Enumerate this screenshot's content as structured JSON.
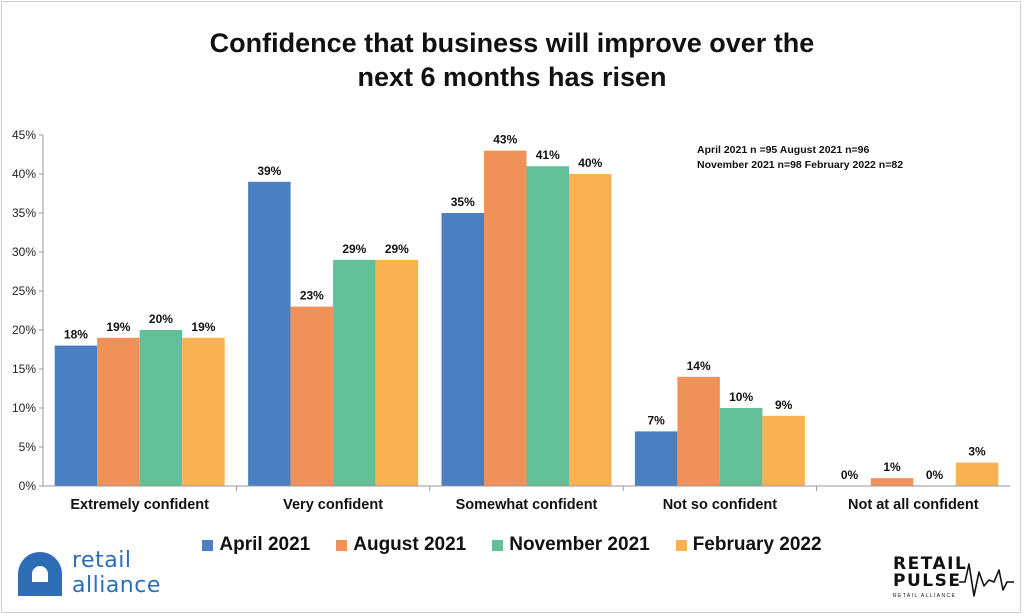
{
  "chart_data": {
    "type": "bar",
    "title_lines": [
      "Confidence that business will improve over the",
      "next 6 months has risen"
    ],
    "categories": [
      "Extremely confident",
      "Very confident",
      "Somewhat confident",
      "Not so confident",
      "Not at all confident"
    ],
    "series": [
      {
        "name": "April 2021",
        "color": "#4a7fc1",
        "values": [
          18,
          39,
          35,
          7,
          0
        ],
        "labels": [
          "18%",
          "39%",
          "35%",
          "7%",
          "0%"
        ]
      },
      {
        "name": "August 2021",
        "color": "#f0915a",
        "values": [
          19,
          23,
          43,
          14,
          1
        ],
        "labels": [
          "19%",
          "23%",
          "43%",
          "14%",
          "1%"
        ]
      },
      {
        "name": "November 2021",
        "color": "#63bf98",
        "values": [
          20,
          29,
          41,
          10,
          0
        ],
        "labels": [
          "20%",
          "29%",
          "41%",
          "10%",
          "0%"
        ]
      },
      {
        "name": "February 2022",
        "color": "#f9b152",
        "values": [
          19,
          29,
          40,
          9,
          3
        ],
        "labels": [
          "19%",
          "29%",
          "40%",
          "9%",
          "3%"
        ]
      }
    ],
    "ylim": [
      0,
      45
    ],
    "yticks": [
      "0%",
      "5%",
      "10%",
      "15%",
      "20%",
      "25%",
      "30%",
      "35%",
      "40%",
      "45%"
    ],
    "legend_position": "bottom",
    "annotation_lines": [
      "April 2021 n =95   August 2021 n=96",
      "November 2021 n=98  February 2022 n=82"
    ]
  },
  "logos": {
    "retail_alliance": {
      "line1": "retail",
      "line2": "alliance",
      "color": "#2d6db5"
    },
    "retail_pulse": {
      "line1": "RETAIL",
      "line2": "PULSE",
      "line3": "RETAIL ALLIANCE"
    }
  }
}
